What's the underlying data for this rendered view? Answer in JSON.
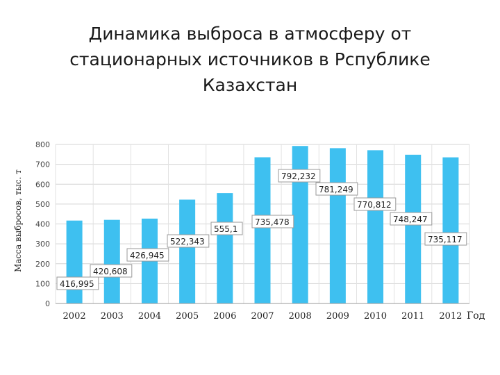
{
  "title_lines": [
    "Динамика выброса в атмосферу от",
    "стационарных источников в Рспублике",
    "Казахстан"
  ],
  "chart_data": {
    "type": "bar",
    "title": "Динамика выброса в атмосферу от стационарных источников в Рспублике Казахстан",
    "categories": [
      "2002",
      "2003",
      "2004",
      "2005",
      "2006",
      "2007",
      "2008",
      "2009",
      "2010",
      "2011",
      "2012"
    ],
    "values": [
      416.995,
      420.608,
      426.945,
      522.343,
      555.1,
      735.478,
      792.232,
      781.249,
      770.812,
      748.247,
      735.117
    ],
    "data_labels": [
      "416,995",
      "420,608",
      "426,945",
      "522,343",
      "555,1",
      "735,478",
      "792,232",
      "781,249",
      "770,812",
      "748,247",
      "735,117"
    ],
    "xlabel": "Год",
    "ylabel": "Масса выбросов, тыс. т",
    "ylim": [
      0,
      800
    ],
    "yticks": [
      0,
      100,
      200,
      300,
      400,
      500,
      600,
      700,
      800
    ],
    "grid": true,
    "bar_color": "#3ec0f0"
  }
}
